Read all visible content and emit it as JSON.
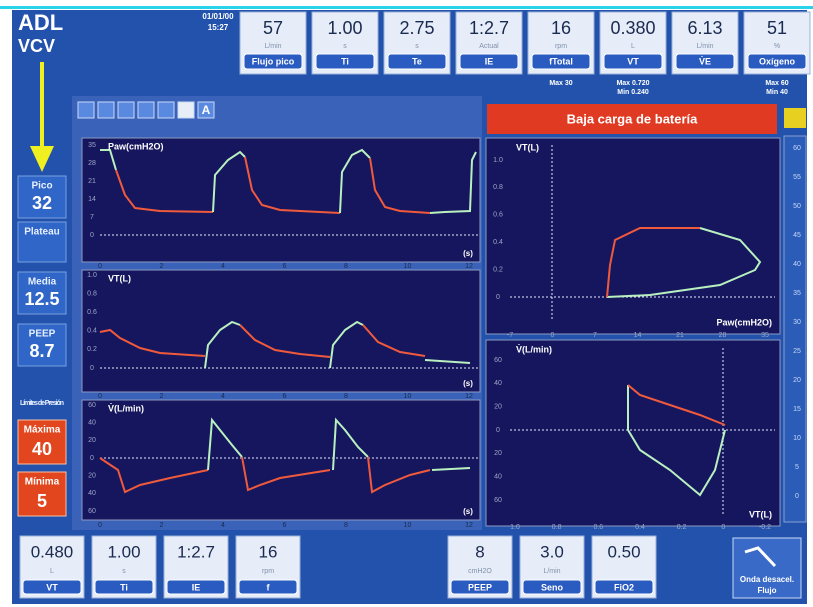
{
  "header": {
    "mode": "ADL",
    "ventilation": "VCV",
    "date": "01/01/00",
    "time": "15:27"
  },
  "top_params": [
    {
      "value": "57",
      "unit": "L/min",
      "label": "Flujo pico"
    },
    {
      "value": "1.00",
      "unit": "s",
      "label": "Ti"
    },
    {
      "value": "2.75",
      "unit": "s",
      "label": "Te"
    },
    {
      "value": "1:2.7",
      "unit": "Actual",
      "label": "IE"
    },
    {
      "value": "16",
      "unit": "rpm",
      "label": "fTotal",
      "limits": [
        "Max 30"
      ]
    },
    {
      "value": "0.380",
      "unit": "L",
      "label": "VT",
      "limits": [
        "Max 0.720",
        "Min 0.240"
      ]
    },
    {
      "value": "6.13",
      "unit": "L/min",
      "label": "V̇E"
    },
    {
      "value": "51",
      "unit": "%",
      "label": "Oxígeno",
      "limits": [
        "Max 60",
        "Min 40"
      ]
    }
  ],
  "left_panel": {
    "items": [
      {
        "label": "Pico",
        "value": "32"
      },
      {
        "label": "Plateau"
      },
      {
        "label": "Media",
        "value": "12.5"
      },
      {
        "label": "PEEP",
        "value": "8.7"
      }
    ],
    "limits_title": "Límites de Presión",
    "limits": [
      {
        "label": "Máxima",
        "value": "40"
      },
      {
        "label": "Mínima",
        "value": "5"
      }
    ]
  },
  "toolbar_label": "A",
  "alarm": "Baja carga de batería",
  "waveforms": [
    {
      "title": "Paw(cmH2O)",
      "yticks": [
        "35",
        "28",
        "21",
        "14",
        "7",
        "0"
      ],
      "xticks": [
        "0",
        "2",
        "4",
        "6",
        "8",
        "10",
        "12"
      ],
      "x_unit": "(s)"
    },
    {
      "title": "VT(L)",
      "yticks": [
        "1.0",
        "0.8",
        "0.6",
        "0.4",
        "0.2",
        "0"
      ],
      "xticks": [
        "0",
        "2",
        "4",
        "6",
        "8",
        "10",
        "12"
      ],
      "x_unit": "(s)"
    },
    {
      "title": "V̇(L/min)",
      "yticks": [
        "60",
        "40",
        "20",
        "0",
        "20",
        "40",
        "60"
      ],
      "xticks": [
        "0",
        "2",
        "4",
        "6",
        "8",
        "10",
        "12"
      ],
      "x_unit": "(s)"
    }
  ],
  "loops": [
    {
      "title": "VT(L)",
      "x_title": "Paw(cmH2O)",
      "yticks": [
        "1.0",
        "0.8",
        "0.6",
        "0.4",
        "0.2",
        "0"
      ],
      "xticks": [
        "-7",
        "0",
        "7",
        "14",
        "21",
        "28",
        "35"
      ]
    },
    {
      "title": "V̇(L/min)",
      "x_title": "VT(L)",
      "yticks": [
        "60",
        "40",
        "20",
        "0",
        "20",
        "40",
        "60"
      ],
      "xticks": [
        "1.0",
        "0.8",
        "0.6",
        "0.4",
        "0.2",
        "0",
        "-0.2"
      ]
    }
  ],
  "scale": [
    "60",
    "55",
    "50",
    "45",
    "40",
    "35",
    "30",
    "25",
    "20",
    "15",
    "10",
    "5",
    "0"
  ],
  "bottom_params": [
    {
      "value": "0.480",
      "unit": "L",
      "label": "VT"
    },
    {
      "value": "1.00",
      "unit": "s",
      "label": "Ti"
    },
    {
      "value": "1:2.7",
      "label": "IE"
    },
    {
      "value": "16",
      "unit": "rpm",
      "label": "f"
    },
    {
      "value": "8",
      "unit": "cmH2O",
      "label": "PEEP"
    },
    {
      "value": "3.0",
      "unit": "L/min",
      "label": "Seno"
    },
    {
      "value": "0.50",
      "label": "FiO2"
    }
  ],
  "flow_wave_button": [
    "Onda desacel.",
    "Flujo"
  ]
}
